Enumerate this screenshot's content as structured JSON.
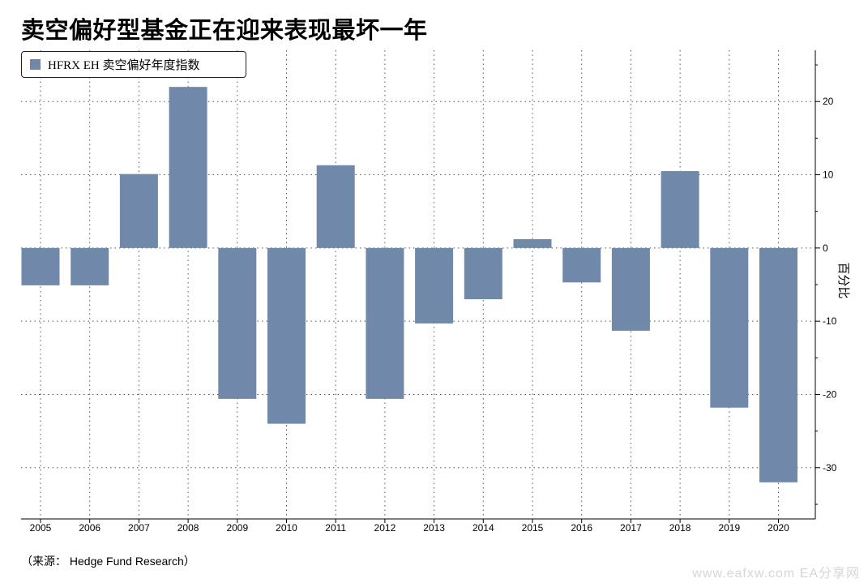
{
  "header": {
    "title": "卖空偏好型基金正在迎来表现最坏一年"
  },
  "footer": {
    "source": "（来源：  Hedge Fund Research）",
    "watermark": "www.eafxw.com  EA分享网"
  },
  "chart_data": {
    "type": "bar",
    "categories": [
      "2005",
      "2006",
      "2007",
      "2008",
      "2009",
      "2010",
      "2011",
      "2012",
      "2013",
      "2014",
      "2015",
      "2016",
      "2017",
      "2018",
      "2019",
      "2020"
    ],
    "series": [
      {
        "name": "HFRX EH 卖空偏好年度指数",
        "values": [
          -5.1,
          -5.1,
          10.1,
          22.0,
          -20.6,
          -24.0,
          11.3,
          -20.6,
          -10.3,
          -7.0,
          1.2,
          -4.7,
          -11.3,
          10.5,
          -21.8,
          -32.0
        ],
        "color": "#7089ab"
      }
    ],
    "xlabel": "",
    "ylabel": "百分比",
    "yticks": [
      20,
      10,
      0,
      -10,
      -20,
      -30
    ],
    "ylim": [
      -37,
      27
    ],
    "grid": true,
    "legend": "top-left",
    "y_axis_side": "right"
  }
}
